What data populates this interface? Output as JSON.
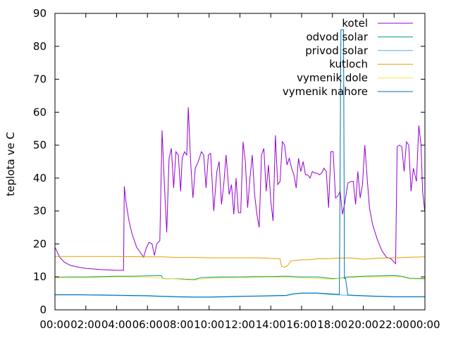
{
  "chart_data": {
    "type": "line",
    "title": "",
    "xlabel": "",
    "ylabel": "teplota ve C",
    "xlim": [
      0,
      24
    ],
    "ylim": [
      0,
      90
    ],
    "x_ticks": [
      {
        "value": 0,
        "label": "00:00"
      },
      {
        "value": 2,
        "label": "02:00"
      },
      {
        "value": 4,
        "label": "04:00"
      },
      {
        "value": 6,
        "label": "06:00"
      },
      {
        "value": 8,
        "label": "08:00"
      },
      {
        "value": 10,
        "label": "10:00"
      },
      {
        "value": 12,
        "label": "12:00"
      },
      {
        "value": 14,
        "label": "14:00"
      },
      {
        "value": 16,
        "label": "16:00"
      },
      {
        "value": 18,
        "label": "18:00"
      },
      {
        "value": 20,
        "label": "20:00"
      },
      {
        "value": 22,
        "label": "22:00"
      },
      {
        "value": 24,
        "label": "00:00"
      }
    ],
    "y_ticks": [
      0,
      10,
      20,
      30,
      40,
      50,
      60,
      70,
      80,
      90
    ],
    "grid": false,
    "legend_position": "top-right",
    "series": [
      {
        "name": "kotel",
        "color": "#9400d3",
        "points": [
          [
            0.0,
            19
          ],
          [
            0.3,
            16
          ],
          [
            0.6,
            14.5
          ],
          [
            1.0,
            13.5
          ],
          [
            1.5,
            13
          ],
          [
            2.0,
            12.6
          ],
          [
            3.0,
            12.2
          ],
          [
            4.0,
            12
          ],
          [
            4.45,
            12
          ],
          [
            4.5,
            37.5
          ],
          [
            4.6,
            33
          ],
          [
            4.8,
            27
          ],
          [
            5.0,
            23
          ],
          [
            5.3,
            19
          ],
          [
            5.6,
            17
          ],
          [
            5.75,
            16
          ],
          [
            5.9,
            18.5
          ],
          [
            6.1,
            20.5
          ],
          [
            6.3,
            20
          ],
          [
            6.45,
            16.5
          ],
          [
            6.6,
            20
          ],
          [
            6.8,
            21
          ],
          [
            6.95,
            54.5
          ],
          [
            7.1,
            38
          ],
          [
            7.25,
            23.5
          ],
          [
            7.4,
            46
          ],
          [
            7.55,
            49
          ],
          [
            7.7,
            37
          ],
          [
            7.85,
            48
          ],
          [
            8.0,
            47
          ],
          [
            8.15,
            36
          ],
          [
            8.25,
            46
          ],
          [
            8.4,
            48
          ],
          [
            8.55,
            47
          ],
          [
            8.65,
            61.5
          ],
          [
            8.8,
            45
          ],
          [
            8.95,
            34
          ],
          [
            9.1,
            43
          ],
          [
            9.3,
            45
          ],
          [
            9.5,
            48
          ],
          [
            9.65,
            47
          ],
          [
            9.8,
            37
          ],
          [
            9.95,
            47
          ],
          [
            10.1,
            47.5
          ],
          [
            10.3,
            30
          ],
          [
            10.5,
            42
          ],
          [
            10.65,
            45
          ],
          [
            10.8,
            32
          ],
          [
            10.95,
            38
          ],
          [
            11.1,
            47
          ],
          [
            11.3,
            35
          ],
          [
            11.45,
            38
          ],
          [
            11.6,
            29
          ],
          [
            11.75,
            40
          ],
          [
            11.9,
            29.5
          ],
          [
            12.05,
            29.5
          ],
          [
            12.2,
            51
          ],
          [
            12.35,
            45
          ],
          [
            12.5,
            31
          ],
          [
            12.65,
            40
          ],
          [
            12.8,
            47
          ],
          [
            12.95,
            35
          ],
          [
            13.1,
            29
          ],
          [
            13.25,
            25
          ],
          [
            13.4,
            47
          ],
          [
            13.55,
            49
          ],
          [
            13.7,
            36
          ],
          [
            13.85,
            44
          ],
          [
            14.0,
            33
          ],
          [
            14.15,
            27
          ],
          [
            14.3,
            53
          ],
          [
            14.45,
            38
          ],
          [
            14.6,
            39
          ],
          [
            14.75,
            51
          ],
          [
            14.9,
            50
          ],
          [
            15.05,
            44
          ],
          [
            15.2,
            46
          ],
          [
            15.35,
            43
          ],
          [
            15.5,
            41
          ],
          [
            15.65,
            37
          ],
          [
            15.8,
            46
          ],
          [
            15.95,
            42
          ],
          [
            16.1,
            45
          ],
          [
            16.25,
            41
          ],
          [
            16.4,
            41
          ],
          [
            16.55,
            40
          ],
          [
            16.7,
            42
          ],
          [
            16.85,
            41.5
          ],
          [
            17.0,
            41.5
          ],
          [
            17.15,
            41
          ],
          [
            17.3,
            41.5
          ],
          [
            17.45,
            43
          ],
          [
            17.6,
            42
          ],
          [
            17.75,
            31
          ],
          [
            17.9,
            48
          ],
          [
            18.05,
            48
          ],
          [
            18.2,
            34
          ],
          [
            18.35,
            34.5
          ],
          [
            18.5,
            36
          ],
          [
            18.65,
            29
          ],
          [
            18.8,
            32.5
          ],
          [
            19.0,
            38.5
          ],
          [
            19.2,
            39
          ],
          [
            19.35,
            39
          ],
          [
            19.5,
            32
          ],
          [
            19.65,
            42
          ],
          [
            19.8,
            34
          ],
          [
            19.95,
            38
          ],
          [
            20.1,
            50
          ],
          [
            20.25,
            40
          ],
          [
            20.4,
            31
          ],
          [
            20.6,
            26
          ],
          [
            20.9,
            21.5
          ],
          [
            21.2,
            18
          ],
          [
            21.5,
            16
          ],
          [
            21.8,
            15.5
          ],
          [
            22.0,
            14.5
          ],
          [
            22.1,
            14
          ],
          [
            22.2,
            49.5
          ],
          [
            22.35,
            50
          ],
          [
            22.5,
            49.5
          ],
          [
            22.65,
            42
          ],
          [
            22.8,
            51
          ],
          [
            22.95,
            50
          ],
          [
            23.1,
            36
          ],
          [
            23.25,
            43
          ],
          [
            23.45,
            39
          ],
          [
            23.6,
            56
          ],
          [
            23.75,
            50
          ],
          [
            23.85,
            36
          ],
          [
            24.0,
            29.5
          ]
        ]
      },
      {
        "name": "odvod solar",
        "color": "#009e73",
        "points": [
          [
            0.0,
            9.9
          ],
          [
            1.0,
            10.0
          ],
          [
            2.0,
            10.0
          ],
          [
            3.0,
            10.1
          ],
          [
            4.0,
            10.2
          ],
          [
            5.0,
            10.2
          ],
          [
            6.0,
            10.3
          ],
          [
            6.9,
            10.4
          ],
          [
            7.0,
            9.5
          ],
          [
            8.0,
            9.4
          ],
          [
            9.0,
            9.2
          ],
          [
            9.5,
            9.8
          ],
          [
            10.0,
            9.9
          ],
          [
            11.0,
            10.0
          ],
          [
            12.0,
            10.0
          ],
          [
            13.0,
            10.1
          ],
          [
            14.0,
            10.1
          ],
          [
            15.0,
            10.2
          ],
          [
            16.0,
            10.0
          ],
          [
            17.0,
            10.0
          ],
          [
            18.0,
            9.5
          ],
          [
            18.5,
            9.6
          ],
          [
            19.0,
            10.0
          ],
          [
            20.0,
            10.2
          ],
          [
            21.0,
            10.3
          ],
          [
            22.0,
            10.4
          ],
          [
            22.5,
            10.2
          ],
          [
            23.0,
            9.6
          ],
          [
            24.0,
            9.5
          ]
        ]
      },
      {
        "name": "privod solar",
        "color": "#56b4e9",
        "points": [
          [
            0.0,
            4.5
          ],
          [
            1.5,
            4.5
          ],
          [
            3.0,
            4.4
          ],
          [
            4.5,
            4.3
          ],
          [
            6.0,
            4.2
          ],
          [
            7.0,
            4.0
          ],
          [
            8.0,
            3.9
          ],
          [
            9.0,
            3.8
          ],
          [
            10.0,
            3.8
          ],
          [
            11.0,
            3.9
          ],
          [
            12.0,
            4.0
          ],
          [
            13.0,
            4.1
          ],
          [
            14.0,
            4.2
          ],
          [
            15.0,
            4.3
          ],
          [
            15.5,
            4.8
          ],
          [
            16.0,
            5.0
          ],
          [
            17.0,
            5.0
          ],
          [
            18.0,
            4.6
          ],
          [
            18.5,
            4.5
          ],
          [
            19.0,
            4.4
          ],
          [
            20.0,
            4.2
          ],
          [
            21.0,
            4.0
          ],
          [
            22.0,
            3.9
          ],
          [
            23.0,
            3.9
          ],
          [
            24.0,
            3.9
          ]
        ]
      },
      {
        "name": "kutloch",
        "color": "#e69f00",
        "points": [
          [
            0.0,
            16.2
          ],
          [
            2.0,
            16.2
          ],
          [
            4.0,
            16.2
          ],
          [
            6.0,
            16.1
          ],
          [
            7.0,
            16.1
          ],
          [
            8.0,
            15.9
          ],
          [
            9.0,
            15.9
          ],
          [
            10.0,
            15.8
          ],
          [
            11.0,
            15.8
          ],
          [
            12.0,
            15.8
          ],
          [
            13.0,
            15.8
          ],
          [
            14.0,
            15.6
          ],
          [
            14.6,
            15.5
          ],
          [
            14.7,
            13.2
          ],
          [
            14.9,
            12.9
          ],
          [
            15.1,
            13.5
          ],
          [
            15.3,
            14.8
          ],
          [
            15.6,
            15.0
          ],
          [
            16.0,
            15.2
          ],
          [
            16.5,
            15.2
          ],
          [
            17.0,
            15.5
          ],
          [
            17.5,
            15.5
          ],
          [
            18.0,
            15.6
          ],
          [
            18.5,
            15.7
          ],
          [
            19.0,
            15.8
          ],
          [
            20.0,
            15.4
          ],
          [
            20.5,
            15.5
          ],
          [
            21.0,
            15.7
          ],
          [
            22.0,
            15.8
          ],
          [
            23.0,
            16.0
          ],
          [
            24.0,
            16.1
          ]
        ]
      },
      {
        "name": "vymenik dole",
        "color": "#f0e442",
        "points": [
          [
            0.0,
            9.8
          ],
          [
            2.0,
            9.8
          ],
          [
            4.0,
            9.9
          ],
          [
            6.0,
            9.9
          ],
          [
            7.0,
            9.6
          ],
          [
            9.0,
            9.0
          ],
          [
            10.0,
            9.6
          ],
          [
            12.0,
            9.8
          ],
          [
            14.0,
            9.9
          ],
          [
            16.0,
            9.7
          ],
          [
            18.0,
            9.3
          ],
          [
            19.0,
            9.8
          ],
          [
            21.0,
            10.0
          ],
          [
            22.5,
            10.0
          ],
          [
            23.0,
            9.4
          ],
          [
            24.0,
            9.3
          ]
        ]
      },
      {
        "name": "vymenik nahore",
        "color": "#0072b2",
        "points": [
          [
            0.0,
            4.6
          ],
          [
            1.5,
            4.6
          ],
          [
            3.0,
            4.5
          ],
          [
            4.5,
            4.4
          ],
          [
            6.0,
            4.3
          ],
          [
            7.0,
            4.1
          ],
          [
            8.0,
            4.0
          ],
          [
            9.0,
            3.9
          ],
          [
            10.0,
            3.9
          ],
          [
            11.0,
            4.0
          ],
          [
            12.0,
            4.1
          ],
          [
            13.0,
            4.2
          ],
          [
            14.0,
            4.3
          ],
          [
            15.0,
            4.4
          ],
          [
            15.5,
            4.9
          ],
          [
            16.0,
            5.1
          ],
          [
            17.0,
            5.1
          ],
          [
            18.0,
            4.8
          ],
          [
            18.45,
            4.7
          ],
          [
            18.55,
            85
          ],
          [
            18.72,
            85
          ],
          [
            18.78,
            9.5
          ],
          [
            18.85,
            9.6
          ],
          [
            19.0,
            4.5
          ],
          [
            20.0,
            4.3
          ],
          [
            21.0,
            4.1
          ],
          [
            22.0,
            4.0
          ],
          [
            23.0,
            4.0
          ],
          [
            24.0,
            4.0
          ]
        ]
      }
    ]
  }
}
